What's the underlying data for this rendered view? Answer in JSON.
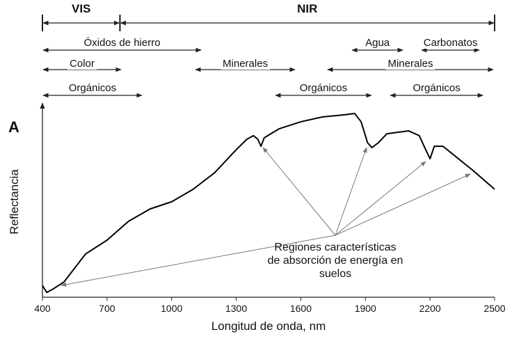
{
  "chart_data": {
    "type": "line",
    "panel_label": "A",
    "x_label": "Longitud de onda, nm",
    "y_label": "Reflectancia",
    "annotation": [
      "Regiones características",
      "de absorción de energía en",
      "suelos"
    ],
    "x": [
      400,
      420,
      450,
      500,
      600,
      700,
      800,
      900,
      1000,
      1100,
      1200,
      1300,
      1350,
      1380,
      1400,
      1415,
      1430,
      1500,
      1600,
      1700,
      1800,
      1850,
      1880,
      1910,
      1930,
      1960,
      2000,
      2100,
      2150,
      2180,
      2200,
      2220,
      2260,
      2300,
      2400,
      2500
    ],
    "series": [
      {
        "color": "#000000",
        "values": [
          6.1,
          2.5,
          4.3,
          7.9,
          22.4,
          29.6,
          39.4,
          45.8,
          49.5,
          56,
          64.6,
          76.5,
          82,
          83.8,
          82,
          78.3,
          82.7,
          87.4,
          91,
          93.5,
          94.6,
          95.3,
          91,
          80.1,
          77.6,
          80.1,
          84.8,
          86.3,
          83.8,
          76.5,
          71.8,
          78.3,
          78.3,
          74.7,
          65.7,
          56
        ]
      }
    ],
    "xlim": [
      400,
      2500
    ],
    "xticks": [
      400,
      700,
      1000,
      1300,
      1600,
      1900,
      2200,
      2500
    ],
    "ylim": [
      0,
      100
    ],
    "regions": [
      [
        {
          "label": "VIS",
          "range": [
            400,
            760
          ]
        },
        {
          "label": "NIR",
          "range": [
            760,
            2500
          ]
        }
      ],
      [
        {
          "label": "Óxidos de hierro",
          "range": [
            400,
            1140
          ]
        },
        {
          "label": "Agua",
          "range": [
            1835,
            2077
          ]
        },
        {
          "label": "Carbonatos",
          "range": [
            2158,
            2432
          ]
        }
      ],
      [
        {
          "label": "Color",
          "range": [
            400,
            768
          ]
        },
        {
          "label": "Minerales",
          "range": [
            1108,
            1576
          ]
        },
        {
          "label": "Minerales",
          "range": [
            1721,
            2497
          ]
        }
      ],
      [
        {
          "label": "Orgánicos",
          "range": [
            400,
            865
          ]
        },
        {
          "label": "Orgánicos",
          "range": [
            1479,
            1931
          ]
        },
        {
          "label": "Orgánicos",
          "range": [
            2012,
            2449
          ]
        }
      ]
    ]
  }
}
